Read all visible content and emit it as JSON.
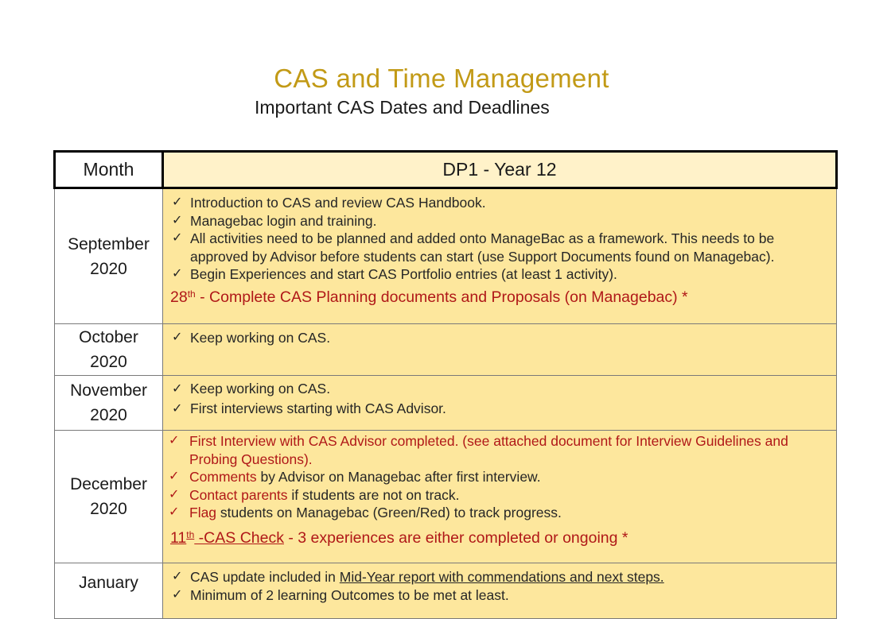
{
  "header": {
    "title": "CAS and Time Management",
    "subtitle": "Important CAS Dates and Deadlines"
  },
  "table": {
    "col_month": "Month",
    "col_dp": "DP1 - Year 12",
    "rows": [
      {
        "month": "September",
        "year": "2020",
        "items": [
          "Introduction to CAS and review CAS Handbook.",
          " Managebac login and training.",
          "All activities need to be planned and added onto ManageBac as a framework. This needs to be approved by Advisor before students can start (use Support Documents found on Managebac).",
          "Begin Experiences and start CAS Portfolio entries (at least 1 activity)."
        ],
        "deadline_day": "28",
        "deadline_sup": "th",
        "deadline_text": " - Complete CAS Planning documents and Proposals (on Managebac) *"
      },
      {
        "month": "October",
        "year": "2020",
        "items": [
          "Keep working on CAS."
        ]
      },
      {
        "month": "November",
        "year": "2020",
        "items": [
          "Keep working on CAS.",
          "First interviews starting with CAS Advisor."
        ]
      },
      {
        "month": "December",
        "year": "2020",
        "item1": "First Interview with CAS Advisor completed. (see attached document for Interview Guidelines and Probing Questions).",
        "item2_bold": "Comments",
        "item2_rest": " by Advisor on Managebac after first interview.",
        "item3_bold": "Contact parents",
        "item3_rest": " if students are not on track.",
        "item4_bold": "Flag",
        "item4_rest": " students on Managebac (Green/Red) to track progress.",
        "deadline_day": "11",
        "deadline_sup": "th",
        "deadline_link": " -CAS Check",
        "deadline_text": " - 3 experiences are either completed or ongoing *"
      },
      {
        "month": "January",
        "item1_pre": "CAS update included in ",
        "item1_link": "Mid-Year report with commendations and next steps.",
        "item2": "Minimum of 2 learning Outcomes to be met at least."
      }
    ]
  },
  "icons": {
    "bullet": "checkmark-icon",
    "check_char": "✓"
  },
  "colors": {
    "title": "#c29a16",
    "cell_fill": "#fde79d",
    "header_fill": "#fff2c9",
    "deadline_red": "#b01818"
  }
}
